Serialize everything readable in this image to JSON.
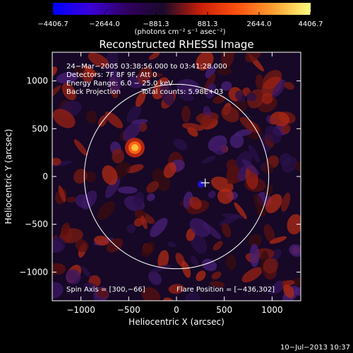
{
  "chart_data": {
    "type": "heatmap",
    "title": "Reconstructed RHESSI Image",
    "xlabel": "Heliocentric X (arcsec)",
    "ylabel": "Heliocentric Y (arcsec)",
    "xlim": [
      -1300,
      1300
    ],
    "ylim": [
      -1300,
      1300
    ],
    "x_ticks": [
      -1000,
      -500,
      0,
      500,
      1000
    ],
    "x_tick_labels": [
      "−1000",
      "−500",
      "0",
      "500",
      "1000"
    ],
    "y_ticks": [
      -1000,
      -500,
      0,
      500,
      1000
    ],
    "y_tick_labels": [
      "−1000",
      "−500",
      "0",
      "500",
      "1000"
    ],
    "colorbar": {
      "min": -4406.7,
      "max": 4406.7,
      "ticks": [
        -4406.7,
        -2644.0,
        -881.3,
        881.3,
        2644.0,
        4406.7
      ],
      "tick_labels": [
        "−4406.7",
        "−2644.0",
        "−881.3",
        "881.3",
        "2644.0",
        "4406.7"
      ],
      "label": "(photons cm⁻² s⁻¹ asec⁻²)",
      "colors": [
        "#0000ff",
        "#3a00d8",
        "#300060",
        "#1a0a2a",
        "#c81e0a",
        "#ff5010",
        "#ffa030",
        "#ffff80"
      ]
    },
    "annotations": [
      "24−Mar−2005 03:38:56.000 to 03:41:28.000",
      "Detectors: 7F 8F 9F, Att 0",
      "Energy Range: 6.0 − 25.0 keV",
      "Back Projection",
      "Total counts: 5.98E+03",
      "Spin Axis = [300,−66]",
      "Flare Position = [−436,302]"
    ],
    "solar_limb_radius": 965,
    "marker": {
      "x": 300,
      "y": -66,
      "label": "+"
    },
    "bright_source": {
      "x": -436,
      "y": 302,
      "value": 4406.7
    },
    "timestamp": "10−Jul−2013 10:37"
  }
}
